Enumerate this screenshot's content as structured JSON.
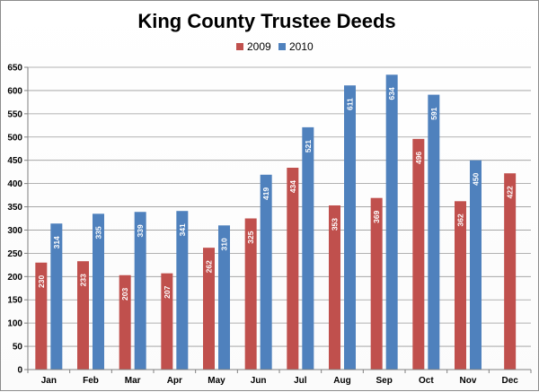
{
  "chart_data": {
    "type": "bar",
    "title": "King County Trustee Deeds",
    "categories": [
      "Jan",
      "Feb",
      "Mar",
      "Apr",
      "May",
      "Jun",
      "Jul",
      "Aug",
      "Sep",
      "Oct",
      "Nov",
      "Dec"
    ],
    "series": [
      {
        "name": "2009",
        "color": "#c0504d",
        "values": [
          230,
          233,
          203,
          207,
          262,
          325,
          434,
          353,
          369,
          496,
          362,
          422
        ]
      },
      {
        "name": "2010",
        "color": "#4f81bd",
        "values": [
          314,
          335,
          339,
          341,
          310,
          419,
          521,
          611,
          634,
          591,
          450,
          null
        ]
      }
    ],
    "ylim": [
      0,
      650
    ],
    "yticks": [
      0,
      50,
      100,
      150,
      200,
      250,
      300,
      350,
      400,
      450,
      500,
      550,
      600,
      650
    ],
    "grid": true,
    "legend": "top-center",
    "xlabel": "",
    "ylabel": ""
  }
}
